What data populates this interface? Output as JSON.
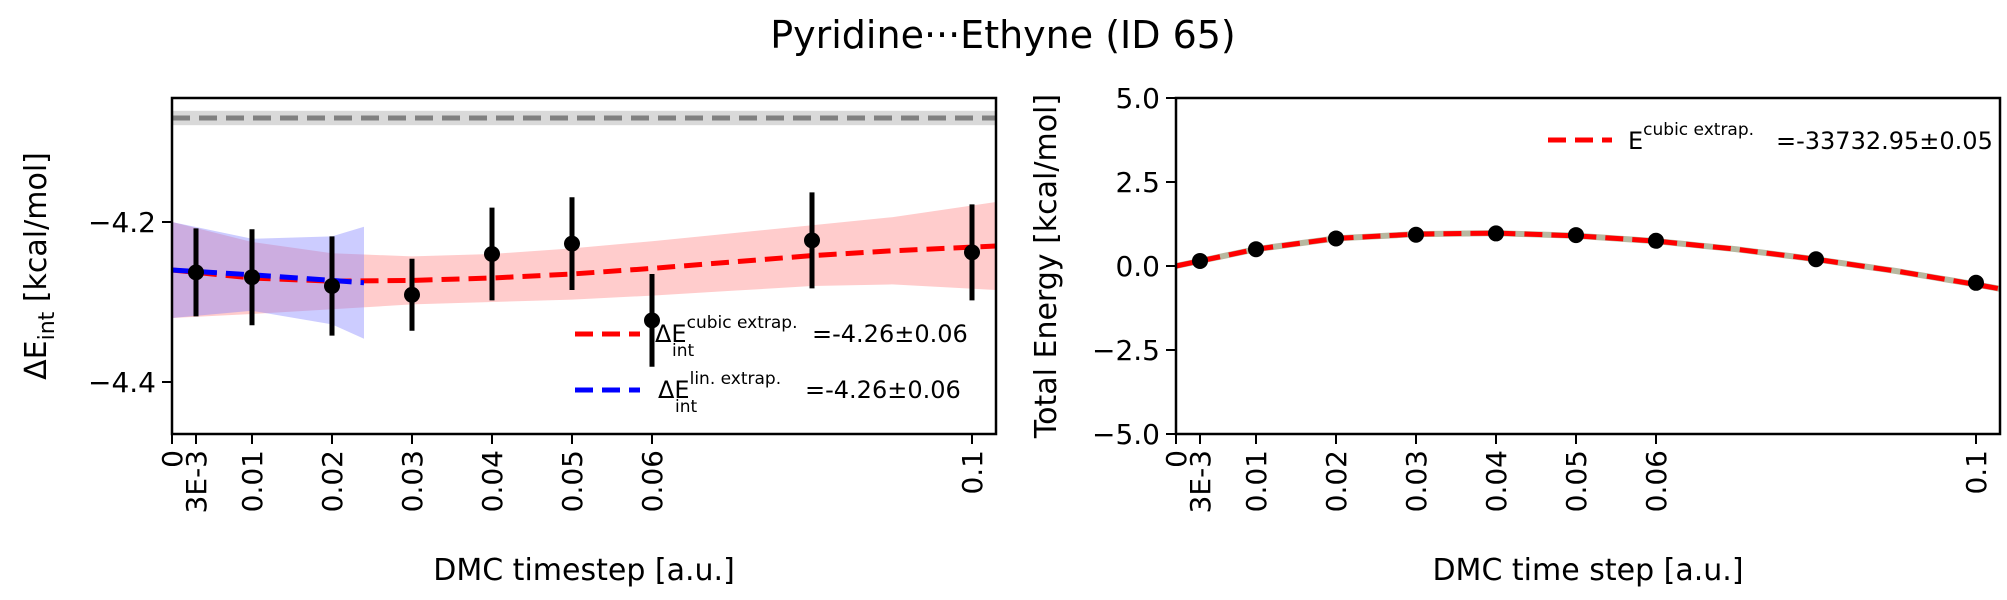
{
  "title": "Pyridine···Ethyne (ID 65)",
  "chart_data": [
    {
      "type": "line",
      "xlabel": "DMC timestep [a.u.]",
      "ylabel_prefix": "ΔE",
      "ylabel_sub": "int",
      "ylabel_suffix": " [kcal/mol]",
      "xlim": [
        0,
        0.103
      ],
      "ylim": [
        -4.465,
        -4.045
      ],
      "x_ticks": [
        {
          "value": 0,
          "label": "0"
        },
        {
          "value": 0.003,
          "label": "3E-3"
        },
        {
          "value": 0.01,
          "label": "0.01"
        },
        {
          "value": 0.02,
          "label": "0.02"
        },
        {
          "value": 0.03,
          "label": "0.03"
        },
        {
          "value": 0.04,
          "label": "0.04"
        },
        {
          "value": 0.05,
          "label": "0.05"
        },
        {
          "value": 0.06,
          "label": "0.06"
        },
        {
          "value": 0.1,
          "label": "0.1"
        }
      ],
      "y_ticks": [
        {
          "value": -4.2,
          "label": "−4.2"
        },
        {
          "value": -4.4,
          "label": "−4.4"
        }
      ],
      "reference": {
        "value": -4.07,
        "band": [
          -4.079,
          -4.061
        ],
        "color": "#808080"
      },
      "points": [
        {
          "x": 0.003,
          "y": -4.263,
          "err": 0.055
        },
        {
          "x": 0.01,
          "y": -4.269,
          "err": 0.06
        },
        {
          "x": 0.02,
          "y": -4.28,
          "err": 0.062
        },
        {
          "x": 0.03,
          "y": -4.291,
          "err": 0.045
        },
        {
          "x": 0.04,
          "y": -4.24,
          "err": 0.058
        },
        {
          "x": 0.05,
          "y": -4.227,
          "err": 0.058
        },
        {
          "x": 0.06,
          "y": -4.323,
          "err": 0.058
        },
        {
          "x": 0.08,
          "y": -4.223,
          "err": 0.06
        },
        {
          "x": 0.1,
          "y": -4.238,
          "err": 0.06
        }
      ],
      "series": [
        {
          "name": "cubic extrap.",
          "color": "#ff0000",
          "legend_value": "=-4.26±0.06",
          "x": [
            0,
            0.01,
            0.02,
            0.03,
            0.04,
            0.05,
            0.06,
            0.07,
            0.08,
            0.09,
            0.103
          ],
          "y": [
            -4.26,
            -4.27,
            -4.274,
            -4.273,
            -4.27,
            -4.265,
            -4.258,
            -4.25,
            -4.242,
            -4.236,
            -4.23
          ],
          "band_half": [
            0.06,
            0.045,
            0.035,
            0.03,
            0.03,
            0.032,
            0.034,
            0.036,
            0.038,
            0.042,
            0.055
          ]
        },
        {
          "name": "lin. extrap.",
          "color": "#0000ff",
          "legend_value": "=-4.26±0.06",
          "x": [
            0,
            0.01,
            0.02,
            0.024
          ],
          "y": [
            -4.26,
            -4.266,
            -4.273,
            -4.276
          ],
          "band_half": [
            0.06,
            0.045,
            0.055,
            0.07
          ]
        }
      ],
      "legend": "lower right"
    },
    {
      "type": "line",
      "xlabel": "DMC time step [a.u.]",
      "ylabel": "Total Energy [kcal/mol]",
      "xlim": [
        0,
        0.103
      ],
      "ylim": [
        -5.0,
        5.0
      ],
      "x_ticks": [
        {
          "value": 0,
          "label": "0"
        },
        {
          "value": 0.003,
          "label": "3E-3"
        },
        {
          "value": 0.01,
          "label": "0.01"
        },
        {
          "value": 0.02,
          "label": "0.02"
        },
        {
          "value": 0.03,
          "label": "0.03"
        },
        {
          "value": 0.04,
          "label": "0.04"
        },
        {
          "value": 0.05,
          "label": "0.05"
        },
        {
          "value": 0.06,
          "label": "0.06"
        },
        {
          "value": 0.1,
          "label": "0.1"
        }
      ],
      "y_ticks": [
        {
          "value": 5.0,
          "label": "5.0"
        },
        {
          "value": 2.5,
          "label": "2.5"
        },
        {
          "value": 0.0,
          "label": "0.0"
        },
        {
          "value": -2.5,
          "label": "−2.5"
        },
        {
          "value": -5.0,
          "label": "−5.0"
        }
      ],
      "points": [
        {
          "x": 0.003,
          "y": 0.15
        },
        {
          "x": 0.01,
          "y": 0.5
        },
        {
          "x": 0.02,
          "y": 0.82
        },
        {
          "x": 0.03,
          "y": 0.93
        },
        {
          "x": 0.04,
          "y": 0.97
        },
        {
          "x": 0.05,
          "y": 0.92
        },
        {
          "x": 0.06,
          "y": 0.75
        },
        {
          "x": 0.08,
          "y": 0.2
        },
        {
          "x": 0.1,
          "y": -0.5
        }
      ],
      "series": [
        {
          "name": "cubic extrap.",
          "color": "#ff0000",
          "legend_value": "=-33732.95±0.05",
          "x": [
            0,
            0.01,
            0.02,
            0.03,
            0.04,
            0.05,
            0.06,
            0.07,
            0.08,
            0.09,
            0.1,
            0.103
          ],
          "y": [
            0.0,
            0.5,
            0.82,
            0.95,
            0.98,
            0.9,
            0.74,
            0.5,
            0.2,
            -0.15,
            -0.55,
            -0.68
          ]
        }
      ],
      "legend": "upper right"
    }
  ]
}
